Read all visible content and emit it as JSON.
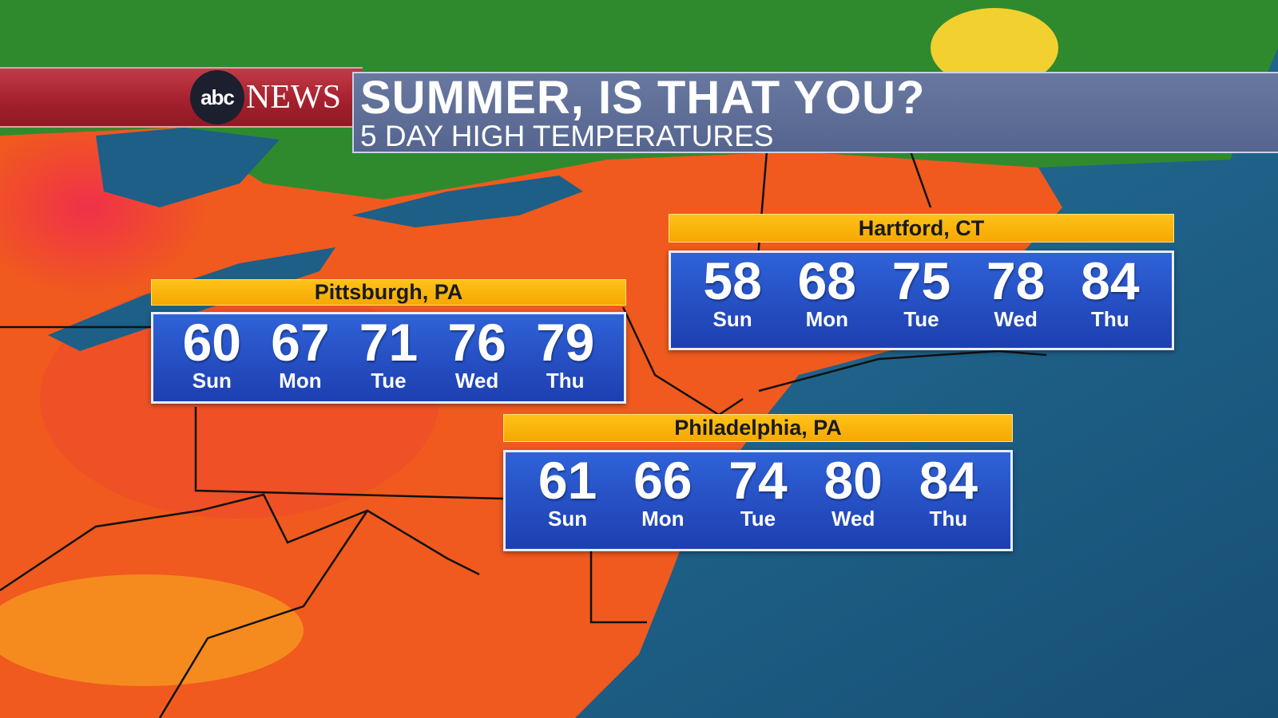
{
  "brand": {
    "logo_text": "abc",
    "network": "NEWS"
  },
  "header": {
    "title": "SUMMER, IS THAT YOU?",
    "subtitle": "5 DAY HIGH TEMPERATURES"
  },
  "colors": {
    "land_warm": "#f05a1e",
    "land_hot": "#ee2a3a",
    "land_cool": "#2f8a2e",
    "ocean": "#1d5f86",
    "panel_blue": "#2a56cc",
    "label_yellow": "#ffbb10",
    "banner_red": "#a31f2c"
  },
  "cities": [
    {
      "name": "Pittsburgh, PA",
      "days": [
        {
          "temp": "60",
          "day": "Sun"
        },
        {
          "temp": "67",
          "day": "Mon"
        },
        {
          "temp": "71",
          "day": "Tue"
        },
        {
          "temp": "76",
          "day": "Wed"
        },
        {
          "temp": "79",
          "day": "Thu"
        }
      ]
    },
    {
      "name": "Hartford, CT",
      "days": [
        {
          "temp": "58",
          "day": "Sun"
        },
        {
          "temp": "68",
          "day": "Mon"
        },
        {
          "temp": "75",
          "day": "Tue"
        },
        {
          "temp": "78",
          "day": "Wed"
        },
        {
          "temp": "84",
          "day": "Thu"
        }
      ]
    },
    {
      "name": "Philadelphia, PA",
      "days": [
        {
          "temp": "61",
          "day": "Sun"
        },
        {
          "temp": "66",
          "day": "Mon"
        },
        {
          "temp": "74",
          "day": "Tue"
        },
        {
          "temp": "80",
          "day": "Wed"
        },
        {
          "temp": "84",
          "day": "Thu"
        }
      ]
    }
  ]
}
